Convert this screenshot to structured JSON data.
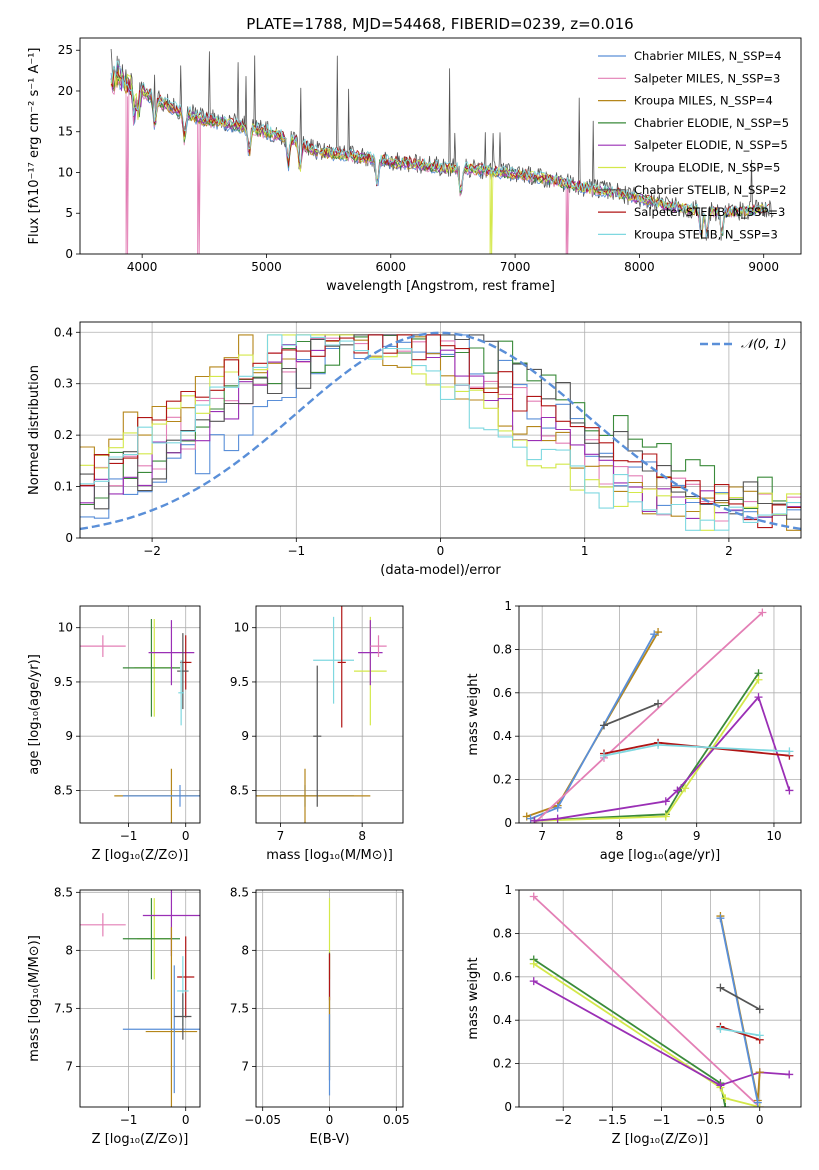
{
  "title": "PLATE=1788, MJD=54468, FIBERID=0239, z=0.016",
  "series": [
    {
      "name": "Chabrier MILES",
      "color": "#5a8fd8"
    },
    {
      "name": "Salpeter MILES",
      "color": "#e37fb5"
    },
    {
      "name": "Kroupa MILES",
      "color": "#b5861a"
    },
    {
      "name": "Chabrier ELODIE",
      "color": "#3a8a3a"
    },
    {
      "name": "Salpeter ELODIE",
      "color": "#9a2fb5"
    },
    {
      "name": "Kroupa ELODIE",
      "color": "#d4e84a"
    },
    {
      "name": "Chabrier STELIB",
      "color": "#555555"
    },
    {
      "name": "Salpeter STELIB",
      "color": "#b01515"
    },
    {
      "name": "Kroupa STELIB",
      "color": "#7fd8e0"
    }
  ],
  "chart_data": [
    {
      "type": "line",
      "xlabel": "wavelength [Angstrom, rest frame]",
      "ylabel": "Flux [fλ10⁻¹⁷ erg cm⁻² s⁻¹ A⁻¹]",
      "xlim": [
        3500,
        9300
      ],
      "ylim": [
        0,
        26.5
      ],
      "xticks": [
        4000,
        5000,
        6000,
        7000,
        8000,
        9000
      ],
      "yticks": [
        0,
        5,
        10,
        15,
        20,
        25
      ],
      "legend": [
        "Chabrier MILES, N_SSP=4",
        "Salpeter MILES, N_SSP=3",
        "Kroupa MILES, N_SSP=4",
        "Chabrier ELODIE, N_SSP=5",
        "Salpeter ELODIE, N_SSP=5",
        "Kroupa ELODIE, N_SSP=5",
        "Chabrier STELIB, N_SSP=2",
        "Salpeter STELIB, N_SSP=3",
        "Kroupa STELIB, N_SSP=3"
      ],
      "legend_loc": "top-right",
      "continuum": {
        "x": [
          3750,
          3800,
          3900,
          4000,
          4100,
          4300,
          4500,
          4700,
          5000,
          5200,
          5400,
          5600,
          5800,
          6000,
          6200,
          6400,
          6600,
          6800,
          7000,
          7200,
          7400,
          7600,
          7800,
          8000,
          8200,
          8400,
          8600,
          8800,
          9000
        ],
        "y": [
          21,
          22,
          21,
          20,
          19,
          17.5,
          16.5,
          16,
          15,
          14,
          12.6,
          12.2,
          11.8,
          11.3,
          11,
          10.6,
          10.5,
          10.2,
          9.8,
          9.4,
          8.7,
          8.0,
          7.5,
          6.8,
          6.0,
          5.5,
          5.2,
          5.2,
          5.6
        ]
      },
      "cutoffs": [
        {
          "series": "Salpeter MILES",
          "x": [
            3880,
            4450,
            7420
          ]
        },
        {
          "series": "Kroupa ELODIE",
          "x": [
            6800
          ]
        }
      ]
    },
    {
      "type": "histogram",
      "xlabel": "(data-model)/error",
      "ylabel": "Normed distribution",
      "xlim": [
        -2.5,
        2.5
      ],
      "ylim": [
        0,
        0.42
      ],
      "xticks": [
        -2,
        -1,
        0,
        1,
        2
      ],
      "yticks": [
        0,
        0.1,
        0.2,
        0.3,
        0.4
      ],
      "grid": true,
      "reference_label": "𝒩(0, 1)",
      "reference_color": "#5a8fd8",
      "legend_loc": "top-right",
      "bin_edges_start": -2.5,
      "bin_width": 0.1
    },
    {
      "type": "scatter-errorbar",
      "xlabel": "Z [log₁₀(Z/Z⊙)]",
      "ylabel": "age  [log₁₀(age/yr)]",
      "xlim": [
        -1.85,
        0.25
      ],
      "ylim": [
        8.2,
        10.2
      ],
      "xticks": [
        -1,
        0
      ],
      "yticks": [
        8.5,
        9.0,
        9.5,
        10.0
      ],
      "points": [
        {
          "series": "Salpeter MILES",
          "x": -1.45,
          "y": 9.83,
          "xerr": 0.4,
          "yerr": 0.1
        },
        {
          "series": "Kroupa ELODIE",
          "x": -0.55,
          "y": 9.63,
          "xerr": 0.35,
          "yerr": 0.45
        },
        {
          "series": "Chabrier ELODIE",
          "x": -0.6,
          "y": 9.63,
          "xerr": 0.5,
          "yerr": 0.45
        },
        {
          "series": "Salpeter ELODIE",
          "x": -0.25,
          "y": 9.77,
          "xerr": 0.4,
          "yerr": 0.3
        },
        {
          "series": "Kroupa MILES",
          "x": -0.25,
          "y": 8.45,
          "xerr": 1.0,
          "yerr": 0.25
        },
        {
          "series": "Salpeter STELIB",
          "x": 0.0,
          "y": 9.68,
          "xerr": 0.1,
          "yerr": 0.25
        },
        {
          "series": "Chabrier STELIB",
          "x": -0.05,
          "y": 9.6,
          "xerr": 0.1,
          "yerr": 0.35
        },
        {
          "series": "Kroupa STELIB",
          "x": -0.08,
          "y": 9.4,
          "xerr": 0.05,
          "yerr": 0.3
        },
        {
          "series": "Chabrier MILES",
          "x": -0.1,
          "y": 8.45,
          "xerr": 1.0,
          "yerr": 0.1
        }
      ]
    },
    {
      "type": "scatter-errorbar",
      "xlabel": "mass [log₁₀(M/M⊙)]",
      "ylabel": "",
      "xlim": [
        6.7,
        8.5
      ],
      "ylim": [
        8.2,
        10.2
      ],
      "xticks": [
        7,
        8
      ],
      "yticks": [
        8.5,
        9.0,
        9.5,
        10.0
      ],
      "points": [
        {
          "series": "Chabrier MILES",
          "x": 7.3,
          "y": 8.45,
          "xerr": 0.6,
          "yerr": 0.1
        },
        {
          "series": "Kroupa MILES",
          "x": 7.3,
          "y": 8.45,
          "xerr": 0.8,
          "yerr": 0.25
        },
        {
          "series": "Chabrier STELIB",
          "x": 7.45,
          "y": 9.0,
          "xerr": 0.05,
          "yerr": 0.65
        },
        {
          "series": "Kroupa STELIB",
          "x": 7.65,
          "y": 9.7,
          "xerr": 0.25,
          "yerr": 0.4
        },
        {
          "series": "Salpeter STELIB",
          "x": 7.75,
          "y": 9.68,
          "xerr": 0.05,
          "yerr": 0.6
        },
        {
          "series": "Kroupa ELODIE",
          "x": 8.1,
          "y": 9.6,
          "xerr": 0.2,
          "yerr": 0.5
        },
        {
          "series": "Salpeter ELODIE",
          "x": 8.1,
          "y": 9.77,
          "xerr": 0.15,
          "yerr": 0.3
        },
        {
          "series": "Salpeter MILES",
          "x": 8.2,
          "y": 9.83,
          "xerr": 0.1,
          "yerr": 0.1
        }
      ]
    },
    {
      "type": "line",
      "xlabel": "age  [log₁₀(age/yr)]",
      "ylabel": "mass weight",
      "xlim": [
        6.7,
        10.35
      ],
      "ylim": [
        0,
        1.0
      ],
      "xticks": [
        7,
        8,
        9,
        10
      ],
      "yticks": [
        0,
        0.2,
        0.4,
        0.6,
        0.8,
        1.0
      ],
      "lines": [
        {
          "series": "Kroupa MILES",
          "points": [
            [
              6.8,
              0.03
            ],
            [
              7.2,
              0.08
            ],
            [
              8.5,
              0.88
            ]
          ]
        },
        {
          "series": "Chabrier MILES",
          "points": [
            [
              6.85,
              0.02
            ],
            [
              7.2,
              0.07
            ],
            [
              8.45,
              0.87
            ]
          ]
        },
        {
          "series": "Salpeter MILES",
          "points": [
            [
              6.9,
              0.0
            ],
            [
              7.8,
              0.3
            ],
            [
              9.85,
              0.97
            ]
          ]
        },
        {
          "series": "Chabrier STELIB",
          "points": [
            [
              7.8,
              0.45
            ],
            [
              8.5,
              0.55
            ]
          ]
        },
        {
          "series": "Chabrier ELODIE",
          "points": [
            [
              6.9,
              0.01
            ],
            [
              8.6,
              0.04
            ],
            [
              8.8,
              0.16
            ],
            [
              9.8,
              0.69
            ]
          ]
        },
        {
          "series": "Kroupa ELODIE",
          "points": [
            [
              6.9,
              0.01
            ],
            [
              8.6,
              0.03
            ],
            [
              8.85,
              0.16
            ],
            [
              9.8,
              0.66
            ]
          ]
        },
        {
          "series": "Salpeter ELODIE",
          "points": [
            [
              6.9,
              0.01
            ],
            [
              7.2,
              0.02
            ],
            [
              8.6,
              0.1
            ],
            [
              8.75,
              0.15
            ],
            [
              9.8,
              0.58
            ],
            [
              10.2,
              0.15
            ]
          ]
        },
        {
          "series": "Salpeter STELIB",
          "points": [
            [
              7.8,
              0.32
            ],
            [
              8.5,
              0.37
            ],
            [
              10.2,
              0.31
            ]
          ]
        },
        {
          "series": "Kroupa STELIB",
          "points": [
            [
              7.8,
              0.31
            ],
            [
              8.5,
              0.36
            ],
            [
              10.2,
              0.33
            ]
          ]
        }
      ]
    },
    {
      "type": "scatter-errorbar",
      "xlabel": "Z [log₁₀(Z/Z⊙)]",
      "ylabel": "mass [log₁₀(M/M⊙)]",
      "xlim": [
        -1.85,
        0.25
      ],
      "ylim": [
        6.65,
        8.52
      ],
      "xticks": [
        -1,
        0
      ],
      "yticks": [
        7.0,
        7.5,
        8.0,
        8.5
      ],
      "points": [
        {
          "series": "Salpeter MILES",
          "x": -1.45,
          "y": 8.22,
          "xerr": 0.4,
          "yerr": 0.1
        },
        {
          "series": "Kroupa ELODIE",
          "x": -0.55,
          "y": 8.1,
          "xerr": 0.3,
          "yerr": 0.35
        },
        {
          "series": "Chabrier ELODIE",
          "x": -0.6,
          "y": 8.1,
          "xerr": 0.5,
          "yerr": 0.35
        },
        {
          "series": "Salpeter ELODIE",
          "x": -0.25,
          "y": 8.3,
          "xerr": 0.5,
          "yerr": 0.35
        },
        {
          "series": "Kroupa MILES",
          "x": -0.25,
          "y": 7.3,
          "xerr": 0.45,
          "yerr": 0.9
        },
        {
          "series": "Chabrier MILES",
          "x": -0.2,
          "y": 7.32,
          "xerr": 0.9,
          "yerr": 0.55
        },
        {
          "series": "Salpeter STELIB",
          "x": 0.0,
          "y": 7.77,
          "xerr": 0.15,
          "yerr": 0.35
        },
        {
          "series": "Kroupa STELIB",
          "x": -0.05,
          "y": 7.65,
          "xerr": 0.1,
          "yerr": 0.3
        },
        {
          "series": "Chabrier STELIB",
          "x": -0.05,
          "y": 7.43,
          "xerr": 0.15,
          "yerr": 0.2
        }
      ]
    },
    {
      "type": "scatter-errorbar",
      "xlabel": "E(B-V)",
      "ylabel": "",
      "xlim": [
        -0.055,
        0.055
      ],
      "ylim": [
        6.65,
        8.52
      ],
      "xticks": [
        -0.05,
        0,
        0.05
      ],
      "yticks": [
        7.0,
        7.5,
        8.0,
        8.5
      ],
      "points": [
        {
          "series": "Kroupa ELODIE",
          "x": 0,
          "y": 8.1,
          "xerr": 0,
          "yerr": 0.35
        },
        {
          "series": "Chabrier STELIB",
          "x": 0,
          "y": 7.43,
          "xerr": 0,
          "yerr": 0.55
        },
        {
          "series": "Salpeter STELIB",
          "x": 0,
          "y": 7.77,
          "xerr": 0,
          "yerr": 0.2
        },
        {
          "series": "Kroupa MILES",
          "x": 0,
          "y": 7.3,
          "xerr": 0,
          "yerr": 0.3
        },
        {
          "series": "Chabrier MILES",
          "x": 0,
          "y": 7.1,
          "xerr": 0,
          "yerr": 0.35
        }
      ]
    },
    {
      "type": "line",
      "xlabel": "Z [log₁₀(Z/Z⊙)]",
      "ylabel": "mass weight",
      "xlim": [
        -2.45,
        0.42
      ],
      "ylim": [
        0,
        1.0
      ],
      "xticks": [
        -2.0,
        -1.5,
        -1.0,
        -0.5,
        0.0
      ],
      "yticks": [
        0,
        0.2,
        0.4,
        0.6,
        0.8,
        1.0
      ],
      "lines": [
        {
          "series": "Salpeter MILES",
          "points": [
            [
              -2.3,
              0.97
            ],
            [
              0.0,
              0.0
            ]
          ]
        },
        {
          "series": "Chabrier ELODIE",
          "points": [
            [
              -2.3,
              0.68
            ],
            [
              -0.4,
              0.11
            ],
            [
              -0.35,
              0.0
            ]
          ]
        },
        {
          "series": "Kroupa ELODIE",
          "points": [
            [
              -2.3,
              0.66
            ],
            [
              -0.4,
              0.09
            ],
            [
              -0.35,
              0.04
            ],
            [
              0.0,
              0.0
            ]
          ]
        },
        {
          "series": "Salpeter ELODIE",
          "points": [
            [
              -2.3,
              0.58
            ],
            [
              -0.4,
              0.1
            ],
            [
              0.0,
              0.16
            ],
            [
              0.3,
              0.15
            ]
          ]
        },
        {
          "series": "Kroupa MILES",
          "points": [
            [
              -0.4,
              0.88
            ],
            [
              -0.02,
              0.03
            ],
            [
              0.0,
              0.16
            ]
          ]
        },
        {
          "series": "Chabrier MILES",
          "points": [
            [
              -0.4,
              0.87
            ],
            [
              -0.02,
              0.02
            ]
          ]
        },
        {
          "series": "Chabrier STELIB",
          "points": [
            [
              -0.4,
              0.55
            ],
            [
              0.0,
              0.45
            ]
          ]
        },
        {
          "series": "Salpeter STELIB",
          "points": [
            [
              -0.4,
              0.37
            ],
            [
              0.0,
              0.31
            ]
          ]
        },
        {
          "series": "Kroupa STELIB",
          "points": [
            [
              -0.4,
              0.36
            ],
            [
              0.0,
              0.33
            ]
          ]
        }
      ]
    }
  ]
}
